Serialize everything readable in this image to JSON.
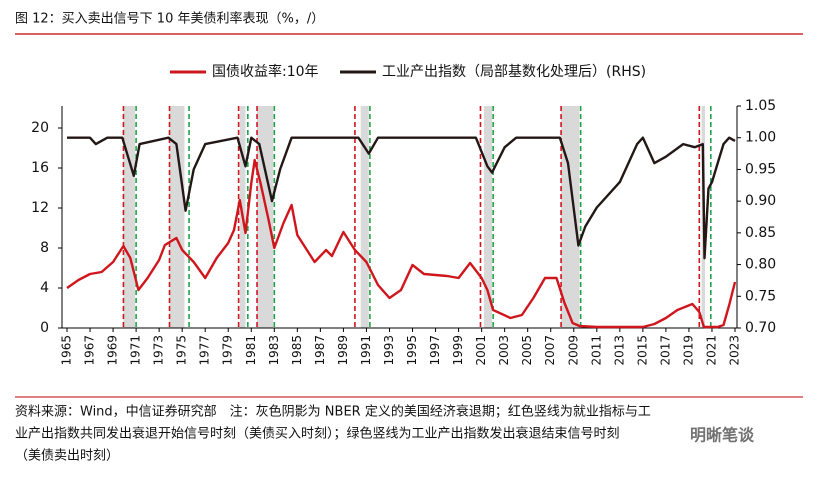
{
  "chart_data": {
    "type": "line",
    "title": "图 12：买入卖出信号下 10 年美债利率表现（%，/）",
    "xlim": [
      1965,
      2023
    ],
    "xticks": [
      1965,
      1967,
      1969,
      1971,
      1973,
      1975,
      1977,
      1979,
      1981,
      1983,
      1985,
      1987,
      1989,
      1991,
      1993,
      1995,
      1997,
      1999,
      2001,
      2003,
      2005,
      2007,
      2009,
      2011,
      2013,
      2015,
      2017,
      2019,
      2021,
      2023
    ],
    "ylim": [
      0,
      22.2
    ],
    "yticks": [
      0,
      4,
      8,
      12,
      16,
      20
    ],
    "y2lim": [
      0.7,
      1.05
    ],
    "y2ticks": [
      {
        "value": 0.7,
        "label": "0.70"
      },
      0.75,
      {
        "value": 0.8,
        "label": "0.80"
      },
      0.85,
      {
        "value": 0.9,
        "label": "0.90"
      },
      0.95,
      {
        "value": 1.0,
        "label": "1.00"
      },
      1.05
    ],
    "series": [
      {
        "name": "国债收益率:10年",
        "color": "#d0161d",
        "axis": "y",
        "x": [
          1965,
          1966,
          1967,
          1968,
          1969,
          1969.9,
          1970.5,
          1971.2,
          1972,
          1973,
          1973.5,
          1974.5,
          1975,
          1976,
          1977,
          1978,
          1979,
          1979.5,
          1980,
          1980.5,
          1981,
          1981.3,
          1981.8,
          1982.5,
          1983,
          1983.8,
          1984.5,
          1985,
          1986.5,
          1987.5,
          1988,
          1989,
          1990,
          1991,
          1992,
          1993,
          1994,
          1995,
          1996,
          1998,
          1999,
          2000,
          2001,
          2001.5,
          2002,
          2003.5,
          2004.5,
          2005.5,
          2006.5,
          2007.5,
          2008.2,
          2008.9,
          2009.5,
          2011,
          2013,
          2015,
          2016,
          2017,
          2018,
          2019.3,
          2019.9,
          2020.3,
          2021.5,
          2022,
          2022.5,
          2023
        ],
        "values": [
          4.0,
          4.8,
          5.4,
          5.6,
          6.6,
          8.2,
          7.0,
          3.8,
          5.0,
          6.8,
          8.3,
          9.0,
          7.8,
          6.6,
          5.0,
          7.0,
          8.5,
          9.8,
          12.8,
          9.5,
          14.5,
          16.8,
          14.5,
          10.8,
          8.0,
          10.5,
          12.3,
          9.3,
          6.6,
          7.8,
          7.2,
          9.6,
          7.8,
          6.6,
          4.3,
          3.0,
          3.8,
          6.3,
          5.4,
          5.2,
          5.0,
          6.5,
          5.0,
          3.8,
          1.8,
          1.0,
          1.3,
          3.0,
          5.0,
          5.0,
          2.5,
          0.5,
          0.2,
          0.1,
          0.1,
          0.1,
          0.4,
          1.0,
          1.8,
          2.4,
          1.6,
          0.1,
          0.1,
          0.3,
          2.3,
          4.6
        ]
      },
      {
        "name": "工业产出指数（局部基数化处理后）(RHS)",
        "color": "#231815",
        "axis": "y2",
        "x": [
          1965,
          1967,
          1967.5,
          1968.5,
          1969.8,
          1970.8,
          1971.3,
          1973.8,
          1974.5,
          1975.3,
          1976,
          1977,
          1979.8,
          1980.5,
          1981,
          1981.7,
          1982.8,
          1983.5,
          1984.5,
          1990.3,
          1991.2,
          1992,
          2000.5,
          2001.5,
          2001.9,
          2003,
          2004,
          2007.8,
          2008.5,
          2009.4,
          2010,
          2011,
          2013,
          2014.5,
          2015,
          2016,
          2017,
          2018.5,
          2019.5,
          2020.2,
          2020.35,
          2020.7,
          2021,
          2021.5,
          2022,
          2022.5,
          2023
        ],
        "values": [
          1.0,
          1.0,
          0.99,
          1.0,
          1.0,
          0.94,
          0.99,
          1.0,
          0.99,
          0.885,
          0.95,
          0.99,
          1.0,
          0.955,
          1.0,
          0.99,
          0.9,
          0.95,
          1.0,
          1.0,
          0.975,
          1.0,
          1.0,
          0.955,
          0.945,
          0.985,
          1.0,
          1.0,
          0.96,
          0.83,
          0.86,
          0.89,
          0.93,
          0.99,
          1.0,
          0.96,
          0.97,
          0.99,
          0.985,
          0.99,
          0.81,
          0.92,
          0.93,
          0.96,
          0.99,
          1.0,
          0.995
        ]
      }
    ],
    "shaded_periods": [
      [
        1969.9,
        1970.9
      ],
      [
        1973.9,
        1975.2
      ],
      [
        1980.0,
        1980.5
      ],
      [
        1981.5,
        1982.9
      ],
      [
        1990.5,
        1991.2
      ],
      [
        2001.2,
        2001.9
      ],
      [
        2007.9,
        2009.5
      ],
      [
        2020.1,
        2020.4
      ]
    ],
    "shade_color": "#d9d9d9",
    "buy_signals": [
      1969.9,
      1973.9,
      1979.9,
      1981.5,
      1990.0,
      2000.9,
      2007.9,
      2019.9
    ],
    "buy_color": "#d0161d",
    "sell_signals": [
      1971.0,
      1975.6,
      1980.7,
      1983.0,
      1991.3,
      2002.0,
      2009.6,
      2020.9
    ],
    "sell_color": "#1fa34a",
    "note": [
      "资料来源：Wind，中信证券研究部　注：灰色阴影为 NBER 定义的美国经济衰退期；红色竖线为就业指标与工",
      "业产出指数共同发出衰退开始信号时刻（美债买入时刻）；绿色竖线为工业产出指数发出衰退结束信号时刻",
      "（美债卖出时刻）"
    ],
    "watermark": "明晰笔谈"
  }
}
